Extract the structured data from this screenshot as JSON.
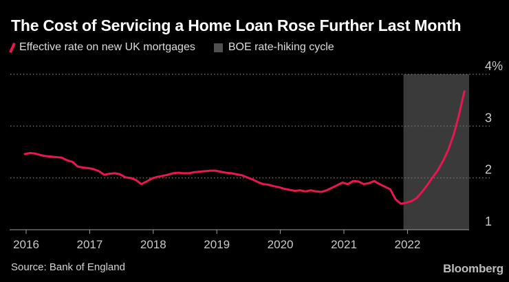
{
  "header": {
    "title": "The Cost of Servicing a Home Loan Rose Further Last Month"
  },
  "legend": {
    "items": [
      {
        "label": "Effective rate on new UK mortgages",
        "marker": "line-slash",
        "color": "#e8174d"
      },
      {
        "label": "BOE rate-hiking cycle",
        "marker": "square",
        "color": "#505050"
      }
    ]
  },
  "footer": {
    "source": "Source: Bank of England",
    "brand": "Bloomberg"
  },
  "colors": {
    "background": "#000000",
    "line": "#e8174d",
    "band": "#3a3a3a",
    "grid": "#6f6f6f",
    "axis": "#a0a0a0",
    "tick_label": "#c9c9c9"
  },
  "chart_data": {
    "type": "line",
    "title": "The Cost of Servicing a Home Loan Rose Further Last Month",
    "xlabel": "",
    "ylabel": "%",
    "ylim": [
      1,
      4
    ],
    "grid": "horizontal-dotted",
    "x_tick_labels": [
      "2016",
      "2017",
      "2018",
      "2019",
      "2020",
      "2021",
      "2022"
    ],
    "y_ticks": [
      {
        "value": 4,
        "label": "4%"
      },
      {
        "value": 3,
        "label": "3"
      },
      {
        "value": 2,
        "label": "2"
      },
      {
        "value": 1,
        "label": "1"
      }
    ],
    "x_start": "2016-01",
    "x_end": "2022-12",
    "frequency": "monthly",
    "series": [
      {
        "name": "Effective rate on new UK mortgages",
        "color": "#e8174d",
        "values": [
          2.46,
          2.48,
          2.47,
          2.44,
          2.42,
          2.41,
          2.4,
          2.39,
          2.34,
          2.31,
          2.22,
          2.2,
          2.19,
          2.17,
          2.13,
          2.06,
          2.08,
          2.09,
          2.07,
          2.01,
          2.0,
          1.96,
          1.88,
          1.93,
          1.99,
          2.02,
          2.04,
          2.06,
          2.09,
          2.1,
          2.09,
          2.09,
          2.11,
          2.12,
          2.13,
          2.14,
          2.14,
          2.12,
          2.1,
          2.09,
          2.07,
          2.05,
          2.01,
          1.97,
          1.92,
          1.88,
          1.87,
          1.84,
          1.82,
          1.79,
          1.77,
          1.75,
          1.76,
          1.74,
          1.76,
          1.74,
          1.73,
          1.76,
          1.81,
          1.86,
          1.91,
          1.88,
          1.94,
          1.93,
          1.88,
          1.9,
          1.94,
          1.88,
          1.83,
          1.78,
          1.59,
          1.5,
          1.52,
          1.55,
          1.61,
          1.73,
          1.86,
          2.01,
          2.15,
          2.33,
          2.55,
          2.84,
          3.22,
          3.67
        ]
      }
    ],
    "band": {
      "label": "BOE rate-hiking cycle",
      "start_month_index": 71.5,
      "end": "chart-right-edge",
      "color": "#3a3a3a"
    }
  }
}
